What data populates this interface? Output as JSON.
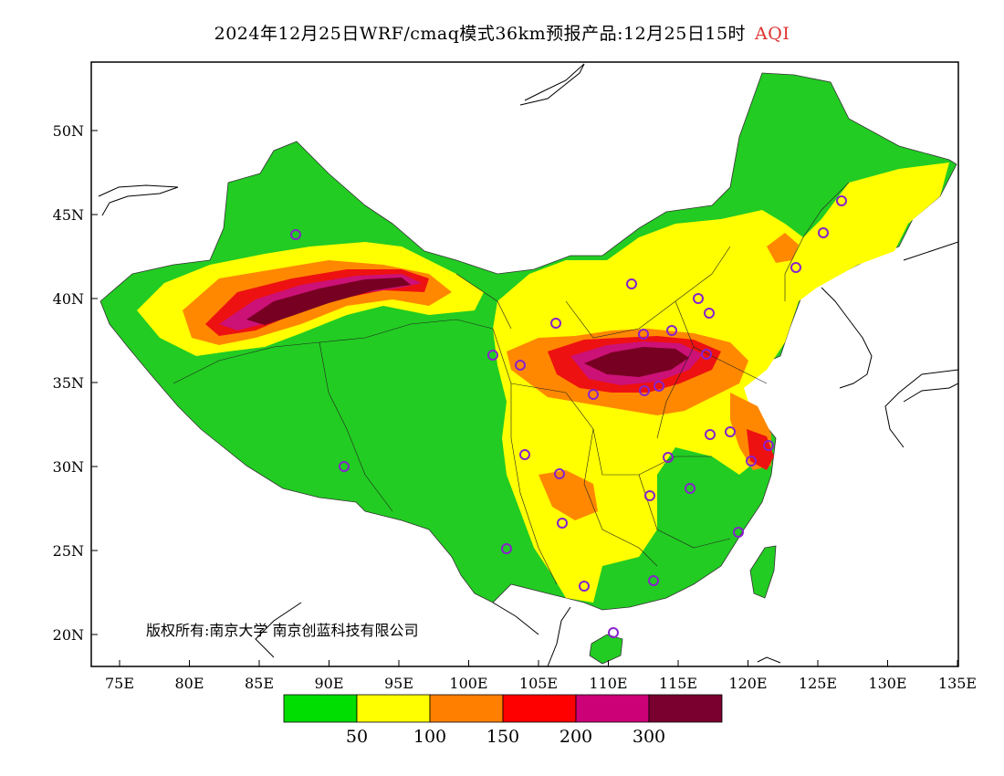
{
  "header": {
    "title": "2024年12月25日WRF/cmaq模式36km预报产品:12月25日15时",
    "product": "AQI"
  },
  "map": {
    "lon_ticks": [
      "75E",
      "80E",
      "85E",
      "90E",
      "95E",
      "100E",
      "105E",
      "110E",
      "115E",
      "120E",
      "125E",
      "130E",
      "135E"
    ],
    "lat_ticks": [
      "20N",
      "25N",
      "30N",
      "35N",
      "40N",
      "45N",
      "50N"
    ],
    "copyright": "版权所有:南京大学 南京创蓝科技有限公司"
  },
  "colorbar": {
    "colors": [
      "#00dd00",
      "#ffff00",
      "#ff8000",
      "#ff0000",
      "#cc0077",
      "#7a0030"
    ],
    "labels": [
      "50",
      "100",
      "150",
      "200",
      "300"
    ]
  },
  "colors": {
    "good": "#22cc22",
    "moderate": "#ffff00",
    "usg": "#ff8800",
    "unhealthy": "#ee1111",
    "very_unhealthy": "#cc1177",
    "hazardous": "#770022",
    "station": "#8822cc"
  }
}
